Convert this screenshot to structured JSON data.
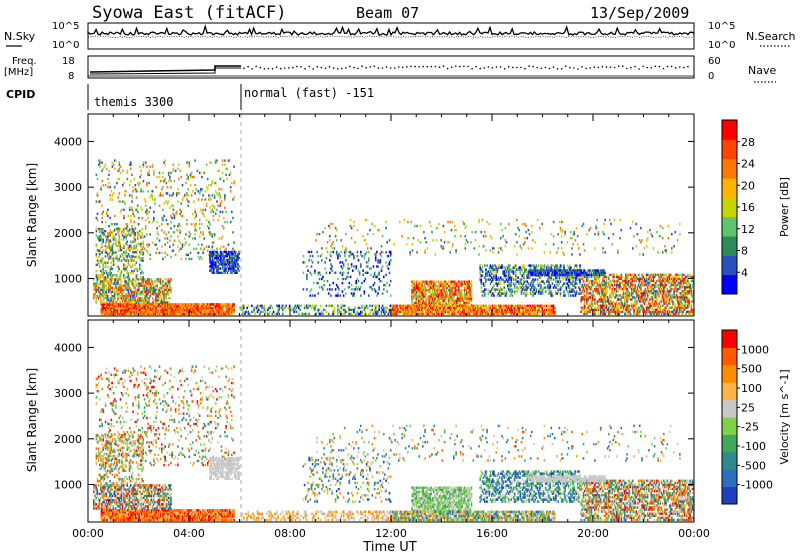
{
  "header": {
    "station": "Syowa East (fitACF)",
    "beam": "Beam 07",
    "date": "13/Sep/2009"
  },
  "strip": {
    "nsky_label": "N.Sky",
    "nsearch_label": "N.Search",
    "nsky_ticks": [
      "10^5",
      "10^0"
    ],
    "nsearch_ticks": [
      "10^5",
      "10^0"
    ],
    "freq_label": "Freq.",
    "freq_unit": "[MHz]",
    "freq_ticks": [
      "18",
      "8"
    ],
    "nave_label": "Nave",
    "nave_ticks": [
      "60",
      "0"
    ],
    "cpid_label": "CPID",
    "cpid_segments": [
      {
        "name": "themis 3300",
        "start_hour": 0,
        "end_hour": 6
      },
      {
        "name": "normal (fast) -151",
        "start_hour": 6,
        "end_hour": 24
      }
    ]
  },
  "chart_data": [
    {
      "type": "heatmap",
      "name": "power",
      "ylabel": "Slant Range [km]",
      "yticks": [
        1000,
        2000,
        3000,
        4000
      ],
      "ylim": [
        180,
        4600
      ],
      "xlim": [
        0,
        24
      ],
      "colorbar": {
        "label": "Power [dB]",
        "ticks": [
          "28",
          "24",
          "20",
          "16",
          "12",
          "8",
          "4"
        ],
        "colors": [
          "#0000ff",
          "#2a52be",
          "#2e8b57",
          "#5ec46e",
          "#c8d400",
          "#ffb300",
          "#ff7700",
          "#ff4400",
          "#ff0000"
        ]
      }
    },
    {
      "type": "heatmap",
      "name": "velocity",
      "ylabel": "Slant Range [km]",
      "yticks": [
        1000,
        2000,
        3000,
        4000
      ],
      "ylim": [
        180,
        4600
      ],
      "xlim": [
        0,
        24
      ],
      "xlabel": "Time UT",
      "xticks": [
        "00:00",
        "04:00",
        "08:00",
        "12:00",
        "16:00",
        "20:00",
        "00:00"
      ],
      "colorbar": {
        "label": "Velocity [m s^-1]",
        "ticks": [
          "1000",
          "500",
          "100",
          "25",
          "-25",
          "-100",
          "-500",
          "-1000"
        ],
        "colors": [
          "#1f3fbf",
          "#2b6fbf",
          "#2e8b8b",
          "#3fa85a",
          "#7fd24a",
          "#c8c8c8",
          "#ffb347",
          "#ff8c00",
          "#ff5a00",
          "#ff0000"
        ]
      }
    }
  ]
}
